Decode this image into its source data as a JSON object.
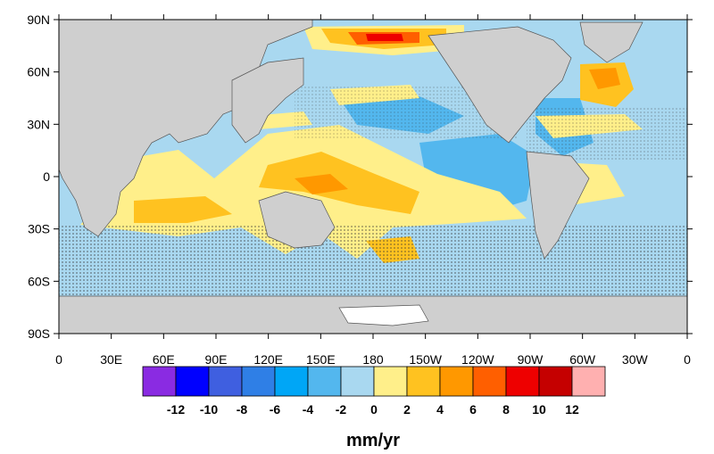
{
  "map": {
    "lat_labels": [
      "90N",
      "60N",
      "30N",
      "0",
      "30S",
      "60S",
      "90S"
    ],
    "lon_labels": [
      "0",
      "30E",
      "60E",
      "90E",
      "120E",
      "150E",
      "180",
      "150W",
      "120W",
      "90W",
      "60W",
      "30W",
      "0"
    ],
    "colors": {
      "land": "#cfcfcf",
      "ice": "#ffffff",
      "grid_dots": "#3e3e3e",
      "neutral_ocean": "#a9d8f0"
    }
  },
  "colorbar": {
    "colors": [
      "#8a2be2",
      "#0000ff",
      "#3f5fe0",
      "#2f7fe6",
      "#00a6f6",
      "#53b7ee",
      "#a9d8f0",
      "#ffef8a",
      "#ffc220",
      "#ff9800",
      "#ff5f00",
      "#ee0000",
      "#c50000",
      "#ffb0b0"
    ],
    "labels": [
      "-12",
      "-10",
      "-8",
      "-6",
      "-4",
      "-2",
      "0",
      "2",
      "4",
      "6",
      "8",
      "10",
      "12"
    ],
    "units": "mm/yr"
  }
}
